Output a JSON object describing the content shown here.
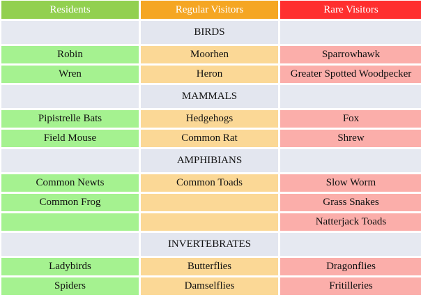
{
  "headers": [
    "Residents",
    "Regular Visitors",
    "Rare Visitors"
  ],
  "colors": {
    "residents_header": "#92d050",
    "regular_header": "#f5a623",
    "rare_header": "#ff2f2f",
    "residents_cell": "#a5f290",
    "regular_cell": "#fbd896",
    "rare_cell": "#fbaeaa",
    "section_band": "#e6e9f1"
  },
  "sections": [
    {
      "title": "BIRDS",
      "rows": [
        [
          "Robin",
          "Moorhen",
          "Sparrowhawk"
        ],
        [
          "Wren",
          "Heron",
          "Greater Spotted Woodpecker"
        ]
      ]
    },
    {
      "title": "MAMMALS",
      "rows": [
        [
          "Pipistrelle Bats",
          "Hedgehogs",
          "Fox"
        ],
        [
          "Field Mouse",
          "Common Rat",
          "Shrew"
        ]
      ]
    },
    {
      "title": "AMPHIBIANS",
      "rows": [
        [
          "Common Newts",
          "Common Toads",
          "Slow Worm"
        ],
        [
          "Common Frog",
          "",
          "Grass Snakes"
        ],
        [
          "",
          "",
          "Natterjack Toads"
        ]
      ]
    },
    {
      "title": "INVERTEBRATES",
      "rows": [
        [
          "Ladybirds",
          "Butterflies",
          "Dragonflies"
        ],
        [
          "Spiders",
          "Damselflies",
          "Fritilleries"
        ]
      ]
    }
  ]
}
